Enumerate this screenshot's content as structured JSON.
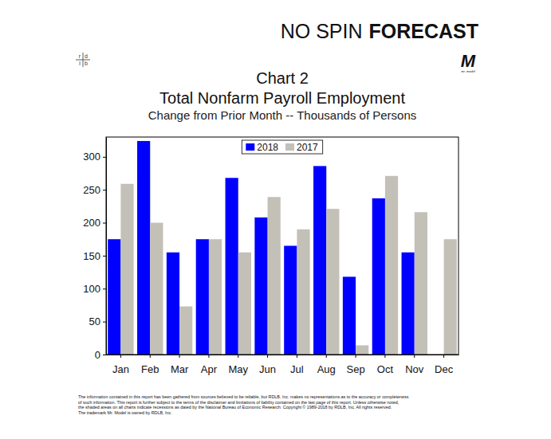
{
  "page": {
    "brand": [
      "NO SPIN",
      "FORECAST"
    ],
    "logo_left": [
      "r",
      "d",
      "l",
      "b"
    ],
    "logo_right": "M",
    "logo_right_caption": "mr. model",
    "footer": [
      "The information contained in this report has been gathered from sources believed to be reliable, but RDLB, Inc. makes no representations as to the accuracy or completeness",
      "of such information. This report is further subject to the terms of the disclaimer and limitations of liability contained on the last page of this report. Unless otherwise noted,",
      "the shaded areas on all charts indicate recessions as dated by the National Bureau of Economic Research. Copyright © 1989-2018 by RDLB, Inc. All rights reserved.",
      "The trademark Mr. Model is owned by RDLB, Inc."
    ]
  },
  "chart_data": {
    "type": "bar",
    "label": "Chart 2",
    "title": "Total Nonfarm Payroll Employment",
    "subtitle": "Change from Prior Month -- Thousands of Persons",
    "categories": [
      "Jan",
      "Feb",
      "Mar",
      "Apr",
      "May",
      "Jun",
      "Jul",
      "Aug",
      "Sep",
      "Oct",
      "Nov",
      "Dec"
    ],
    "series": [
      {
        "name": "2018",
        "color": "#0000ff",
        "values": [
          175,
          324,
          155,
          175,
          268,
          208,
          165,
          286,
          118,
          237,
          155,
          null
        ]
      },
      {
        "name": "2017",
        "color": "#c3c0b8",
        "values": [
          259,
          200,
          73,
          175,
          155,
          239,
          190,
          221,
          14,
          271,
          216,
          175
        ]
      }
    ],
    "ylim": [
      0,
      330
    ],
    "yticks": [
      0,
      50,
      100,
      150,
      200,
      250,
      300
    ],
    "grid": false,
    "legend": "top"
  }
}
